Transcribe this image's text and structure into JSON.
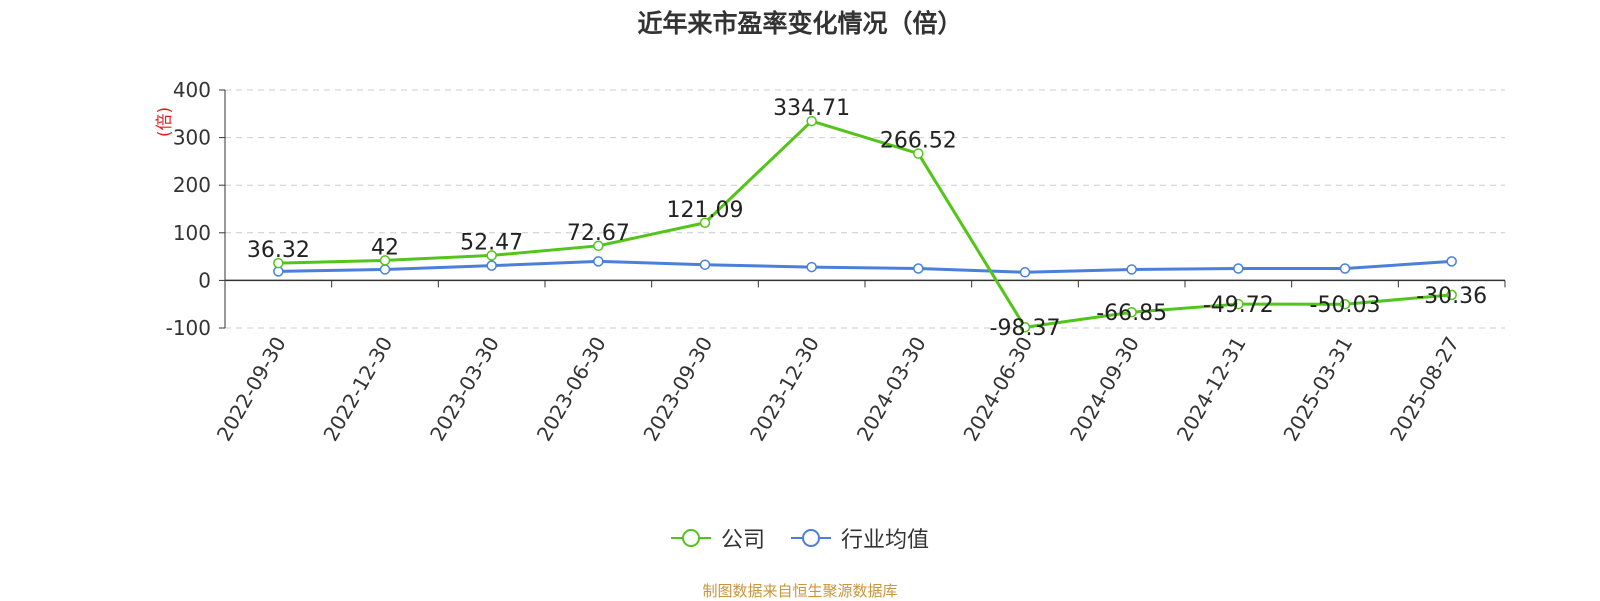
{
  "title": "近年来市盈率变化情况（倍）",
  "source": "制图数据来自恒生聚源数据库",
  "chart_data": {
    "type": "line",
    "x": [
      "2022-09-30",
      "2022-12-30",
      "2023-03-30",
      "2023-06-30",
      "2023-09-30",
      "2023-12-30",
      "2024-03-30",
      "2024-06-30",
      "2024-09-30",
      "2024-12-31",
      "2025-03-31",
      "2025-08-27"
    ],
    "ylabel": "(倍)",
    "ylim": [
      -100,
      400
    ],
    "yticks": [
      -100,
      0,
      100,
      200,
      300,
      400
    ],
    "grid": true,
    "legend_position": "bottom-center",
    "series": [
      {
        "name": "公司",
        "color": "#52c41a",
        "values": [
          36.32,
          42,
          52.47,
          72.67,
          121.09,
          334.71,
          266.52,
          -98.37,
          -66.85,
          -49.72,
          -50.03,
          -30.36
        ],
        "labels": [
          "36.32",
          "42",
          "52.47",
          "72.67",
          "121.09",
          "334.71",
          "266.52",
          "-98.37",
          "-66.85",
          "-49.72",
          "-50.03",
          "-30.36"
        ]
      },
      {
        "name": "行业均值",
        "color": "#4a7fdc",
        "values": [
          19,
          23,
          31,
          40,
          33,
          28,
          25,
          17,
          23,
          25,
          25,
          40
        ]
      }
    ]
  }
}
